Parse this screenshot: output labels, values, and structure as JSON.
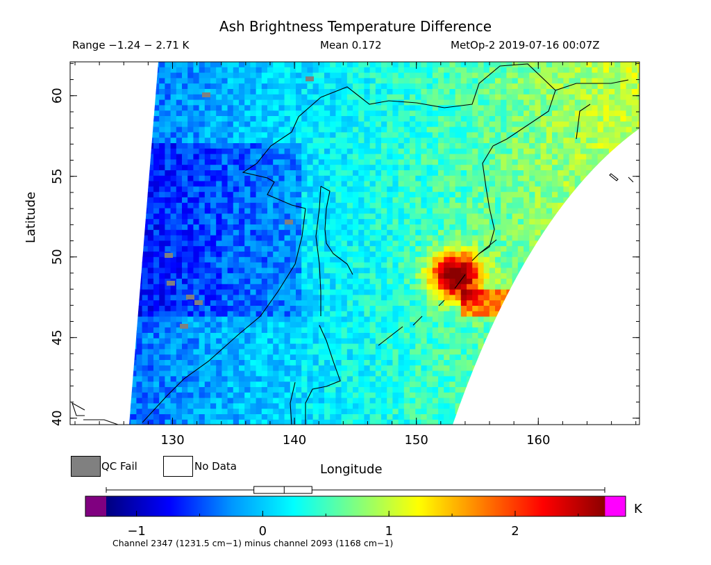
{
  "chart_data": {
    "type": "heatmap",
    "title": "Ash Brightness Temperature Difference",
    "range_text": "Range −1.24 − 2.71 K",
    "mean_text": "Mean 0.172",
    "source_text": "MetOp-2 2019-07-16 00:07Z",
    "xlabel": "Longitude",
    "ylabel": "Latitude",
    "xlim": [
      121.6,
      168.3
    ],
    "ylim": [
      39.6,
      62.1
    ],
    "xticks": [
      "130",
      "140",
      "150",
      "160"
    ],
    "yticks": [
      "40",
      "45",
      "50",
      "55",
      "60"
    ],
    "hot_spot": {
      "lon": 153.0,
      "lat": 49.0,
      "max_value": 2.71
    },
    "colorbar": {
      "min": -1.24,
      "max": 2.71,
      "ticks": [
        "−1",
        "0",
        "1",
        "2"
      ],
      "unit": "K",
      "colors": [
        "#000080",
        "#0000ff",
        "#0096ff",
        "#00ffff",
        "#80ff80",
        "#ffff00",
        "#ff8000",
        "#ff0000",
        "#8b0000"
      ],
      "under_color": "#800080",
      "over_color": "#ff00ff",
      "boxplot": {
        "whisker_low": -1.24,
        "q1": -0.07,
        "median": 0.17,
        "q3": 0.39,
        "whisker_high": 2.71
      }
    },
    "footnote": "Channel 2347 (1231.5 cm−1) minus channel 2093 (1168 cm−1)"
  },
  "legend": {
    "qc_fail": {
      "label": "QC Fail",
      "color": "#808080"
    },
    "no_data": {
      "label": "No Data",
      "color": "#ffffff"
    }
  }
}
